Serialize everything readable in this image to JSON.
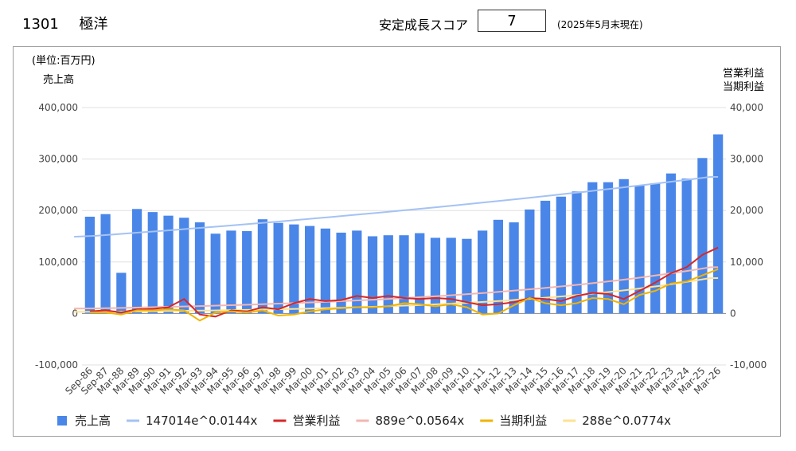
{
  "header": {
    "code": "1301",
    "name": "極洋",
    "score_label": "安定成長スコア",
    "score_value": "7",
    "as_of": "(2025年5月末現在)"
  },
  "chart_data": {
    "type": "bar",
    "unit_label": "(単位:百万円)",
    "left_axis_label": "売上高",
    "right_axis_label_1": "営業利益",
    "right_axis_label_2": "当期利益",
    "left_ylim": [
      -100000,
      400000
    ],
    "right_ylim": [
      -10000,
      40000
    ],
    "left_ticks": [
      "400,000",
      "300,000",
      "200,000",
      "100,000",
      "0",
      "-100,000"
    ],
    "right_ticks": [
      "40,000",
      "30,000",
      "20,000",
      "10,000",
      "0",
      "-10,000"
    ],
    "grid": true,
    "legend_position": "bottom",
    "categories": [
      "Sep-86",
      "Sep-87",
      "Mar-88",
      "Mar-89",
      "Mar-90",
      "Mar-91",
      "Mar-92",
      "Mar-93",
      "Mar-94",
      "Mar-95",
      "Mar-96",
      "Mar-97",
      "Mar-98",
      "Mar-99",
      "Mar-00",
      "Mar-01",
      "Mar-02",
      "Mar-03",
      "Mar-04",
      "Mar-05",
      "Mar-06",
      "Mar-07",
      "Mar-08",
      "Mar-09",
      "Mar-10",
      "Mar-11",
      "Mar-12",
      "Mar-13",
      "Mar-14",
      "Mar-15",
      "Mar-16",
      "Mar-17",
      "Mar-18",
      "Mar-19",
      "Mar-20",
      "Mar-21",
      "Mar-22",
      "Mar-23",
      "Mar-24",
      "Mar-25",
      "Mar-26"
    ],
    "series": [
      {
        "name": "売上高",
        "type": "bar",
        "axis": "left",
        "color": "#4a86e8",
        "values": [
          188000,
          193000,
          79000,
          203000,
          197000,
          190000,
          186000,
          177000,
          155000,
          161000,
          160000,
          183000,
          176000,
          173000,
          170000,
          165000,
          157000,
          161000,
          150000,
          152000,
          152000,
          156000,
          147000,
          147000,
          145000,
          161000,
          182000,
          177000,
          202000,
          219000,
          227000,
          237000,
          255000,
          255000,
          261000,
          249000,
          253000,
          272000,
          262000,
          302000,
          348000
        ]
      },
      {
        "name": "147014e^0.0144x",
        "type": "trend",
        "axis": "left",
        "color": "#a4c2f4",
        "a": 147014,
        "b": 0.0144
      },
      {
        "name": "営業利益",
        "type": "line",
        "axis": "right",
        "color": "#d62728",
        "values": [
          400,
          600,
          200,
          800,
          900,
          1200,
          2800,
          -200,
          -600,
          600,
          400,
          1200,
          800,
          2000,
          2800,
          2400,
          2600,
          3400,
          3000,
          3400,
          3000,
          2800,
          3000,
          2800,
          2200,
          1600,
          1800,
          2200,
          3000,
          2800,
          2400,
          3400,
          4000,
          3800,
          2800,
          4400,
          6000,
          7800,
          9000,
          11400,
          12800
        ]
      },
      {
        "name": "889e^0.0564x",
        "type": "trend",
        "axis": "right",
        "color": "#f4b6b0",
        "a": 889,
        "b": 0.0564
      },
      {
        "name": "当期利益",
        "type": "line",
        "axis": "right",
        "color": "#f1b300",
        "values": [
          200,
          200,
          -200,
          600,
          600,
          800,
          600,
          -1400,
          200,
          400,
          200,
          600,
          -400,
          -200,
          400,
          800,
          1000,
          1200,
          1200,
          1400,
          2000,
          1800,
          1400,
          1800,
          1200,
          -200,
          0,
          1600,
          3000,
          2000,
          1600,
          2000,
          3000,
          2800,
          1800,
          3600,
          4400,
          5800,
          6200,
          7400,
          8600
        ]
      },
      {
        "name": "288e^0.0774x",
        "type": "trend",
        "axis": "right",
        "color": "#fde293",
        "a": 288,
        "b": 0.0774
      }
    ]
  }
}
